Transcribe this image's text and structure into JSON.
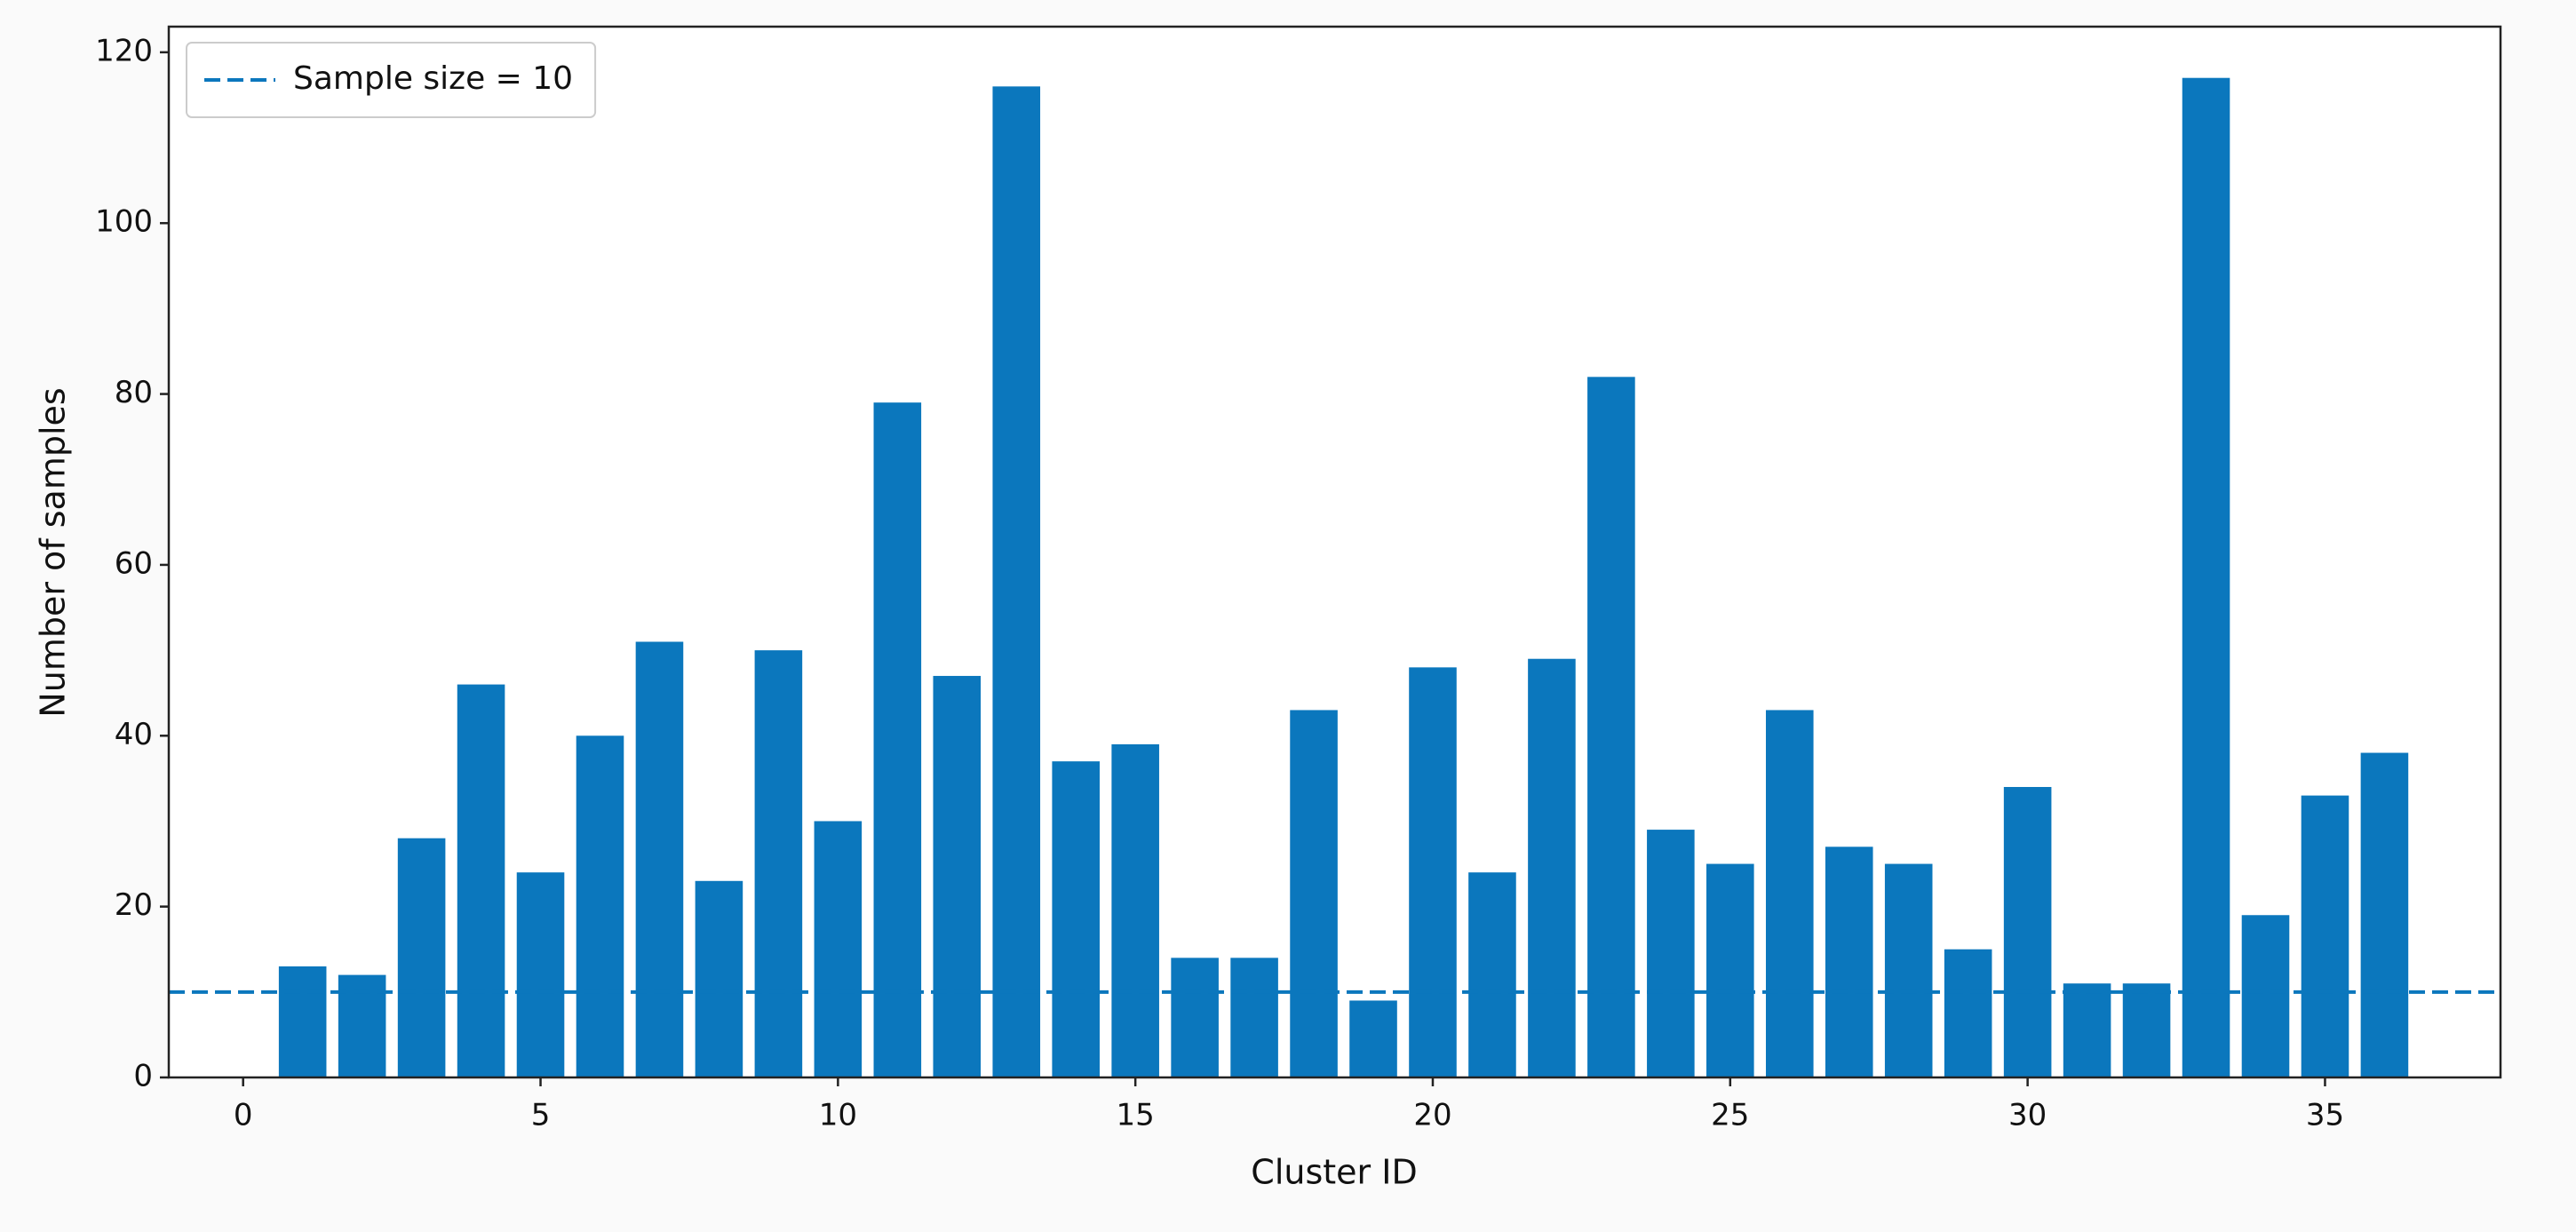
{
  "chart_data": {
    "type": "bar",
    "x_label": "Cluster ID",
    "y_label": "Number of samples",
    "x": [
      1,
      2,
      3,
      4,
      5,
      6,
      7,
      8,
      9,
      10,
      11,
      12,
      13,
      14,
      15,
      16,
      17,
      18,
      19,
      20,
      21,
      22,
      23,
      24,
      25,
      26,
      27,
      28,
      29,
      30,
      31,
      32,
      33,
      34,
      35,
      36
    ],
    "values": [
      13,
      12,
      28,
      46,
      24,
      40,
      51,
      23,
      50,
      30,
      79,
      47,
      116,
      37,
      39,
      14,
      14,
      43,
      9,
      48,
      24,
      49,
      82,
      29,
      25,
      43,
      27,
      25,
      15,
      34,
      11,
      11,
      117,
      19,
      33,
      38
    ],
    "color": "#0b77bd",
    "xlim": [
      -1.25,
      37.95
    ],
    "xticks": [
      0,
      5,
      10,
      15,
      20,
      25,
      30,
      35
    ],
    "ylim": [
      0,
      123
    ],
    "yticks": [
      0,
      20,
      40,
      60,
      80,
      100,
      120
    ],
    "reference_line": {
      "name": "Sample size = 10",
      "value": 10,
      "color": "#0b77bd"
    },
    "legend": "upper left"
  }
}
